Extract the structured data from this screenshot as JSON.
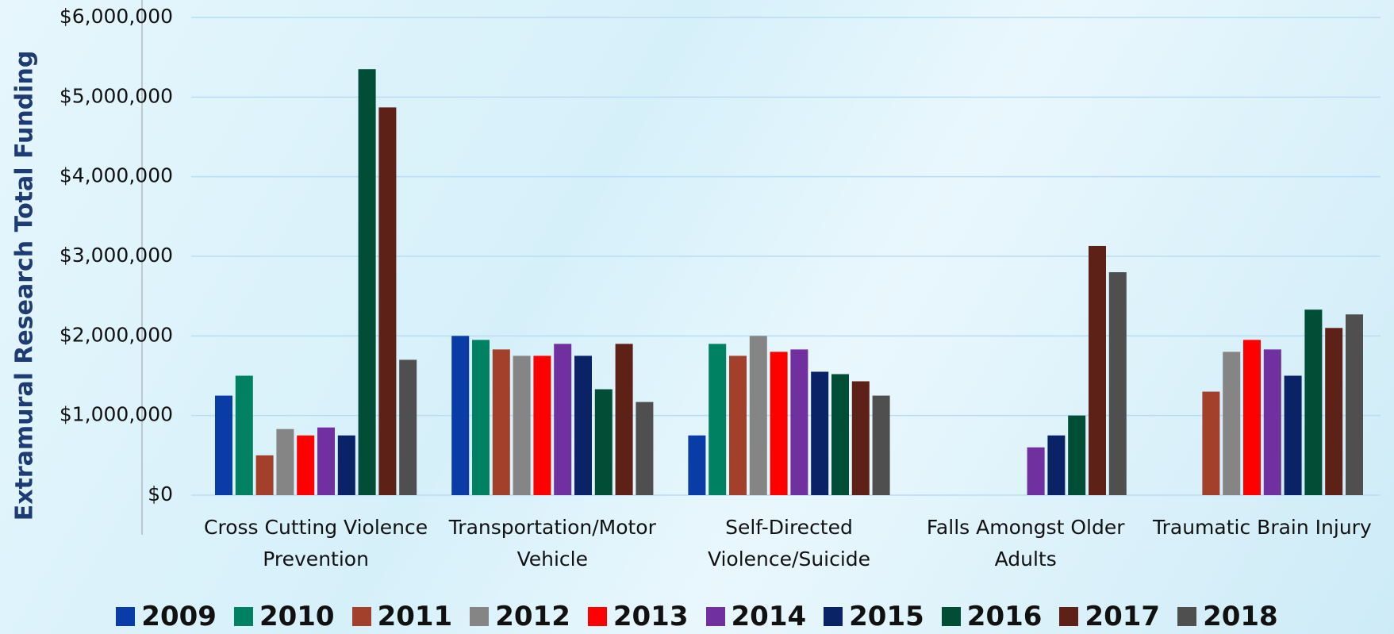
{
  "chart_data": {
    "type": "bar",
    "y_label": "Extramural Research Total Funding",
    "categories": [
      "Cross Cutting Violence Prevention",
      "Transportation/Motor Vehicle",
      "Self-Directed Violence/Suicide",
      "Falls Amongst Older Adults",
      "Traumatic Brain Injury"
    ],
    "series": [
      {
        "name": "2009",
        "color": "#0a3ca8",
        "values": [
          1250000,
          2000000,
          750000,
          null,
          null
        ]
      },
      {
        "name": "2010",
        "color": "#008262",
        "values": [
          1500000,
          1950000,
          1900000,
          null,
          null
        ]
      },
      {
        "name": "2011",
        "color": "#a3402b",
        "values": [
          500000,
          1830000,
          1750000,
          null,
          1300000
        ]
      },
      {
        "name": "2012",
        "color": "#858585",
        "values": [
          830000,
          1750000,
          2000000,
          null,
          1800000
        ]
      },
      {
        "name": "2013",
        "color": "#ff0000",
        "values": [
          750000,
          1750000,
          1800000,
          null,
          1950000
        ]
      },
      {
        "name": "2014",
        "color": "#7030a0",
        "values": [
          850000,
          1900000,
          1830000,
          600000,
          1830000
        ]
      },
      {
        "name": "2015",
        "color": "#0a2366",
        "values": [
          750000,
          1750000,
          1550000,
          750000,
          1500000
        ]
      },
      {
        "name": "2016",
        "color": "#014d35",
        "values": [
          5350000,
          1330000,
          1520000,
          1000000,
          2330000
        ]
      },
      {
        "name": "2017",
        "color": "#5e2118",
        "values": [
          4870000,
          1900000,
          1430000,
          3130000,
          2100000
        ]
      },
      {
        "name": "2018",
        "color": "#4f4f4f",
        "values": [
          1700000,
          1170000,
          1250000,
          2800000,
          2270000
        ]
      }
    ],
    "ylim": [
      0,
      6000000
    ],
    "yticks": [
      {
        "value": 0,
        "label": "$0"
      },
      {
        "value": 1000000,
        "label": "$1,000,000"
      },
      {
        "value": 2000000,
        "label": "$2,000,000"
      },
      {
        "value": 3000000,
        "label": "$3,000,000"
      },
      {
        "value": 4000000,
        "label": "$4,000,000"
      },
      {
        "value": 5000000,
        "label": "$5,000,000"
      },
      {
        "value": 6000000,
        "label": "$6,000,000"
      }
    ],
    "grid": true,
    "legend": "bottom"
  }
}
